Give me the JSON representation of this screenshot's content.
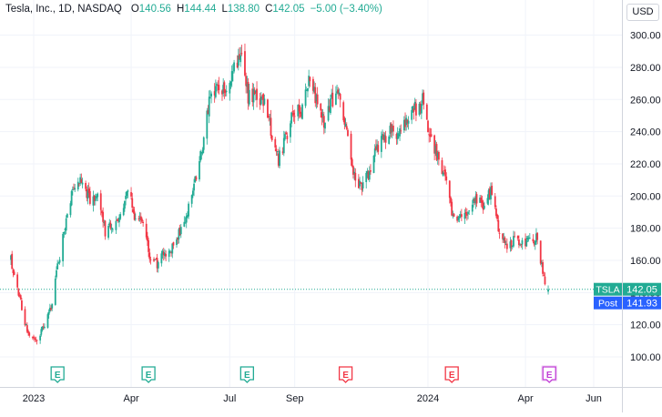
{
  "legend": {
    "symbol": "Tesla, Inc., 1D, NASDAQ",
    "open_label": "O",
    "open": "140.56",
    "high_label": "H",
    "high": "144.44",
    "low_label": "L",
    "low": "138.80",
    "close_label": "C",
    "close": "142.05",
    "change": "−5.00 (−3.40%)"
  },
  "currency_button": "USD",
  "price_tags": [
    {
      "label": "TSLA",
      "value": "142.05",
      "color": "#22ab94"
    },
    {
      "label": "Post",
      "value": "141.93",
      "color": "#2962ff"
    }
  ],
  "earnings_marker_label": "E",
  "colors": {
    "up": "#22ab94",
    "down": "#f23645",
    "earnings_upcoming": "#c13dd6",
    "grid": "#f0f3fa",
    "price_line": "#22ab94"
  },
  "chart_data": {
    "type": "candlestick",
    "title": "Tesla, Inc., 1D, NASDAQ",
    "ylim": [
      85,
      305
    ],
    "y_ticks": [
      100,
      120,
      140,
      160,
      180,
      200,
      220,
      240,
      260,
      280,
      300
    ],
    "y_tick_labels": [
      "100.00",
      "120.00",
      "140.00",
      "160.00",
      "180.00",
      "200.00",
      "220.00",
      "240.00",
      "260.00",
      "280.00",
      "300.00"
    ],
    "x_ticks": [
      {
        "label": "2023",
        "date": "2023-01-03"
      },
      {
        "label": "Apr",
        "date": "2023-04-03"
      },
      {
        "label": "Jul",
        "date": "2023-07-03"
      },
      {
        "label": "Sep",
        "date": "2023-09-01"
      },
      {
        "label": "2024",
        "date": "2024-01-02"
      },
      {
        "label": "Apr",
        "date": "2024-04-01"
      },
      {
        "label": "Jun",
        "date": "2024-06-03"
      }
    ],
    "last_price": 142.05,
    "post_market_price": 141.93,
    "last_ohlc": {
      "open": 140.56,
      "high": 144.44,
      "low": 138.8,
      "close": 142.05
    },
    "earnings": [
      {
        "date": "2023-01-25",
        "status": "beat"
      },
      {
        "date": "2023-04-19",
        "status": "beat"
      },
      {
        "date": "2023-07-19",
        "status": "beat"
      },
      {
        "date": "2023-10-18",
        "status": "miss"
      },
      {
        "date": "2024-01-24",
        "status": "miss"
      },
      {
        "date": "2024-04-23",
        "status": "upcoming"
      }
    ],
    "price_path": [
      [
        "2022-12-13",
        160
      ],
      [
        "2022-12-20",
        140
      ],
      [
        "2022-12-28",
        115
      ],
      [
        "2023-01-05",
        111
      ],
      [
        "2023-01-12",
        118
      ],
      [
        "2023-01-19",
        130
      ],
      [
        "2023-01-26",
        160
      ],
      [
        "2023-02-02",
        185
      ],
      [
        "2023-02-09",
        205
      ],
      [
        "2023-02-16",
        210
      ],
      [
        "2023-02-24",
        198
      ],
      [
        "2023-03-03",
        200
      ],
      [
        "2023-03-10",
        178
      ],
      [
        "2023-03-17",
        182
      ],
      [
        "2023-03-24",
        190
      ],
      [
        "2023-03-31",
        205
      ],
      [
        "2023-04-06",
        188
      ],
      [
        "2023-04-13",
        186
      ],
      [
        "2023-04-20",
        162
      ],
      [
        "2023-04-27",
        158
      ],
      [
        "2023-05-04",
        165
      ],
      [
        "2023-05-11",
        168
      ],
      [
        "2023-05-18",
        178
      ],
      [
        "2023-05-25",
        190
      ],
      [
        "2023-06-01",
        210
      ],
      [
        "2023-06-08",
        232
      ],
      [
        "2023-06-15",
        262
      ],
      [
        "2023-06-22",
        268
      ],
      [
        "2023-06-29",
        264
      ],
      [
        "2023-07-06",
        278
      ],
      [
        "2023-07-13",
        287
      ],
      [
        "2023-07-20",
        262
      ],
      [
        "2023-07-27",
        262
      ],
      [
        "2023-08-03",
        258
      ],
      [
        "2023-08-10",
        242
      ],
      [
        "2023-08-17",
        222
      ],
      [
        "2023-08-24",
        236
      ],
      [
        "2023-08-31",
        255
      ],
      [
        "2023-09-07",
        252
      ],
      [
        "2023-09-14",
        275
      ],
      [
        "2023-09-21",
        258
      ],
      [
        "2023-09-28",
        245
      ],
      [
        "2023-10-05",
        260
      ],
      [
        "2023-10-12",
        262
      ],
      [
        "2023-10-19",
        240
      ],
      [
        "2023-10-26",
        212
      ],
      [
        "2023-11-02",
        205
      ],
      [
        "2023-11-09",
        215
      ],
      [
        "2023-11-16",
        230
      ],
      [
        "2023-11-23",
        236
      ],
      [
        "2023-11-30",
        242
      ],
      [
        "2023-12-07",
        238
      ],
      [
        "2023-12-14",
        248
      ],
      [
        "2023-12-21",
        254
      ],
      [
        "2023-12-28",
        259
      ],
      [
        "2024-01-04",
        238
      ],
      [
        "2024-01-11",
        225
      ],
      [
        "2024-01-18",
        212
      ],
      [
        "2024-01-25",
        185
      ],
      [
        "2024-02-01",
        187
      ],
      [
        "2024-02-08",
        188
      ],
      [
        "2024-02-15",
        198
      ],
      [
        "2024-02-22",
        195
      ],
      [
        "2024-02-29",
        202
      ],
      [
        "2024-03-07",
        180
      ],
      [
        "2024-03-14",
        168
      ],
      [
        "2024-03-21",
        172
      ],
      [
        "2024-03-28",
        173
      ],
      [
        "2024-04-04",
        171
      ],
      [
        "2024-04-11",
        174
      ],
      [
        "2024-04-16",
        158
      ],
      [
        "2024-04-19",
        147
      ],
      [
        "2024-04-22",
        142.05
      ]
    ]
  }
}
